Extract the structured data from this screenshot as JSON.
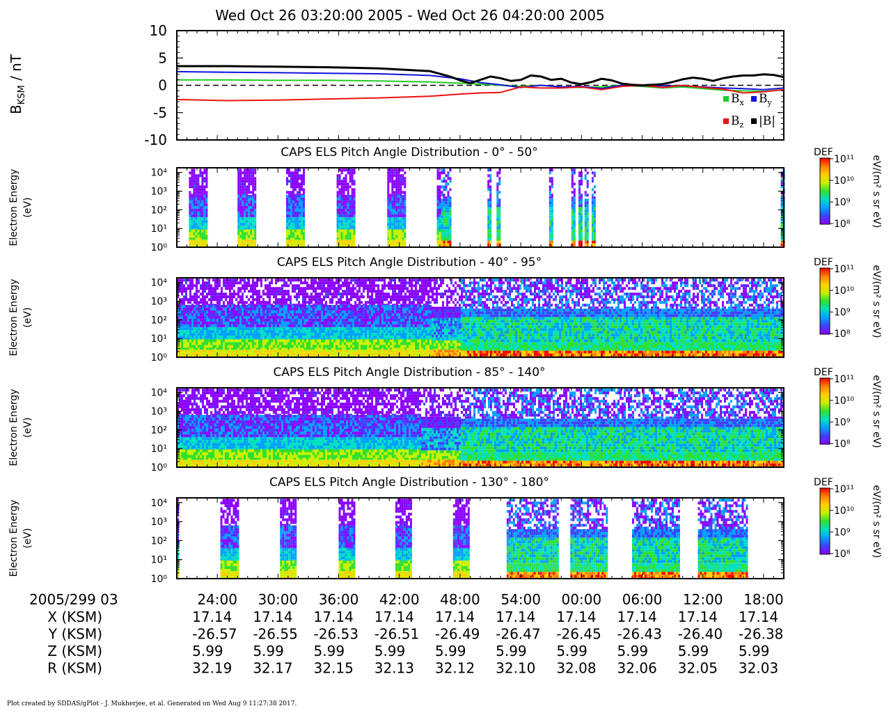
{
  "header": {
    "title": "Wed Oct 26 03:20:00 2005 - Wed Oct 26 04:20:00 2005"
  },
  "colors": {
    "bx": "#22cc22",
    "by": "#1111dd",
    "bz": "#ee1111",
    "bmag": "#000000",
    "colormap": [
      "#8a00ff",
      "#4040ff",
      "#00a0ff",
      "#00e0c0",
      "#30e030",
      "#c8f000",
      "#ffd000",
      "#ff8000",
      "#ff0000"
    ]
  },
  "chart_data": [
    {
      "type": "line",
      "title": "Wed Oct 26 03:20:00 2005 - Wed Oct 26 04:20:00 2005",
      "ylabel": "B",
      "ylabel_sub": "KSM",
      "ylabel_unit": " / nT",
      "ylim": [
        -10,
        10
      ],
      "yticks": [
        "10",
        "5",
        "0",
        "-5",
        "-10"
      ],
      "xlim_minutes": [
        0,
        60
      ],
      "zero_line": "dashed",
      "legend_position": "bottom-right",
      "series": [
        {
          "name": "x",
          "x": [
            0,
            5,
            10,
            15,
            20,
            25,
            28,
            30,
            32,
            34,
            36,
            38,
            40,
            42,
            44,
            46,
            48,
            50,
            52,
            54,
            56,
            58,
            60
          ],
          "values": [
            1.0,
            1.0,
            0.9,
            0.9,
            0.8,
            0.6,
            0.4,
            0.2,
            0.0,
            -0.2,
            0.0,
            -0.3,
            -0.4,
            -0.3,
            0.0,
            -0.2,
            -0.5,
            -0.3,
            -0.6,
            -0.9,
            -1.0,
            -1.1,
            -0.8
          ]
        },
        {
          "name": "y",
          "x": [
            0,
            5,
            10,
            15,
            20,
            25,
            28,
            30,
            32,
            34,
            36,
            38,
            40,
            42,
            44,
            46,
            48,
            50,
            52,
            54,
            56,
            58,
            60
          ],
          "values": [
            2.5,
            2.4,
            2.3,
            2.2,
            2.1,
            1.8,
            1.2,
            0.5,
            0.1,
            -0.4,
            0.0,
            -0.3,
            -0.2,
            -0.6,
            0.0,
            -0.1,
            -0.1,
            -0.1,
            -0.3,
            -0.5,
            -0.6,
            -0.8,
            -0.5
          ]
        },
        {
          "name": "z",
          "x": [
            0,
            5,
            10,
            15,
            20,
            25,
            28,
            30,
            32,
            34,
            36,
            38,
            40,
            42,
            44,
            46,
            48,
            50,
            52,
            54,
            56,
            58,
            60
          ],
          "values": [
            -2.6,
            -2.8,
            -2.7,
            -2.5,
            -2.3,
            -2.0,
            -1.6,
            -1.4,
            -1.3,
            -0.3,
            -0.5,
            -0.5,
            -0.3,
            -0.8,
            -0.2,
            0.0,
            -0.4,
            0.0,
            -0.4,
            -0.7,
            -1.4,
            -1.2,
            -0.8
          ]
        },
        {
          "name": "|B|",
          "x": [
            0,
            5,
            10,
            15,
            20,
            25,
            27,
            28,
            29,
            30,
            31,
            32,
            33,
            34,
            35,
            36,
            37,
            38,
            39,
            40,
            41,
            42,
            43,
            44,
            45,
            46,
            47,
            48,
            49,
            50,
            51,
            52,
            53,
            54,
            55,
            56,
            57,
            58,
            59,
            60
          ],
          "values": [
            3.5,
            3.5,
            3.4,
            3.3,
            3.1,
            2.6,
            1.6,
            0.9,
            0.4,
            1.0,
            1.6,
            1.3,
            0.8,
            1.0,
            1.8,
            1.6,
            1.0,
            1.2,
            0.5,
            0.2,
            0.6,
            1.2,
            0.9,
            0.3,
            0.1,
            0.0,
            0.1,
            0.2,
            0.6,
            1.1,
            1.4,
            1.2,
            0.8,
            1.3,
            1.6,
            1.8,
            1.8,
            2.0,
            1.9,
            1.5
          ]
        }
      ],
      "legend": [
        {
          "sym": "B",
          "sub": "x",
          "color": "#22cc22"
        },
        {
          "sym": "B",
          "sub": "y",
          "color": "#1111dd"
        },
        {
          "sym": "B",
          "sub": "z",
          "color": "#ee1111"
        },
        {
          "sym": "|B|",
          "sub": "",
          "color": "#000000"
        }
      ]
    },
    {
      "type": "heatmap",
      "title": "CAPS ELS Pitch Angle Distribution - 0° - 50°",
      "ylabel": [
        "Electron Energy",
        "(eV)"
      ],
      "yticks": [
        "10⁴",
        "10³",
        "10²",
        "10¹",
        "10⁰"
      ],
      "colorbar": {
        "label": "DEF",
        "unit": "eV/(m² s sr eV)",
        "ticks": [
          "10¹¹",
          "10¹⁰",
          "10⁹",
          "10⁸"
        ]
      },
      "coverage": "bursts",
      "bursts_minutes": [
        [
          1.2,
          3.0
        ],
        [
          6.0,
          7.8
        ],
        [
          10.8,
          12.6
        ],
        [
          15.8,
          17.6
        ],
        [
          20.8,
          22.6
        ],
        [
          25.7,
          27.0
        ],
        [
          30.7,
          31.1
        ],
        [
          31.6,
          32.0
        ],
        [
          36.8,
          37.1
        ],
        [
          39.0,
          39.4
        ],
        [
          39.7,
          40.0
        ],
        [
          40.3,
          40.6
        ],
        [
          41.0,
          41.3
        ],
        [
          59.7,
          60.0
        ]
      ],
      "character": [
        {
          "from": 0,
          "to": 26,
          "shape": "low"
        },
        {
          "from": 26,
          "to": 60,
          "shape": "warm"
        }
      ]
    },
    {
      "type": "heatmap",
      "title": "CAPS ELS Pitch Angle Distribution - 40° - 95°",
      "ylabel": [
        "Electron Energy",
        "(eV)"
      ],
      "yticks": [
        "10⁴",
        "10³",
        "10²",
        "10¹",
        "10⁰"
      ],
      "colorbar": {
        "label": "DEF",
        "unit": "eV/(m² s sr eV)",
        "ticks": [
          "10¹¹",
          "10¹⁰",
          "10⁹",
          "10⁸"
        ]
      },
      "coverage": "continuous",
      "character": [
        {
          "from": 0,
          "to": 25,
          "shape": "low"
        },
        {
          "from": 25,
          "to": 28,
          "shape": "mix"
        },
        {
          "from": 28,
          "to": 60,
          "shape": "warm"
        }
      ]
    },
    {
      "type": "heatmap",
      "title": "CAPS ELS Pitch Angle Distribution - 85° - 140°",
      "ylabel": [
        "Electron Energy",
        "(eV)"
      ],
      "yticks": [
        "10⁴",
        "10³",
        "10²",
        "10¹",
        "10⁰"
      ],
      "colorbar": {
        "label": "DEF",
        "unit": "eV/(m² s sr eV)",
        "ticks": [
          "10¹¹",
          "10¹⁰",
          "10⁹",
          "10⁸"
        ]
      },
      "coverage": "continuous",
      "character": [
        {
          "from": 0,
          "to": 24,
          "shape": "low"
        },
        {
          "from": 24,
          "to": 28,
          "shape": "mix"
        },
        {
          "from": 28,
          "to": 60,
          "shape": "warm"
        }
      ]
    },
    {
      "type": "heatmap",
      "title": "CAPS ELS Pitch Angle Distribution - 130° - 180°",
      "ylabel": [
        "Electron Energy",
        "(eV)"
      ],
      "yticks": [
        "10⁴",
        "10³",
        "10²",
        "10¹",
        "10⁰"
      ],
      "colorbar": {
        "label": "DEF",
        "unit": "eV/(m² s sr eV)",
        "ticks": [
          "10¹¹",
          "10¹⁰",
          "10⁹",
          "10⁸"
        ]
      },
      "coverage": "bursts",
      "bursts_minutes": [
        [
          0.0,
          0.2
        ],
        [
          4.3,
          6.0
        ],
        [
          10.2,
          11.8
        ],
        [
          16.0,
          17.6
        ],
        [
          21.6,
          23.2
        ],
        [
          27.3,
          28.8
        ],
        [
          32.6,
          37.6
        ],
        [
          38.9,
          42.6
        ],
        [
          45.0,
          49.6
        ],
        [
          51.5,
          56.4
        ]
      ],
      "character": [
        {
          "from": 0,
          "to": 31,
          "shape": "low"
        },
        {
          "from": 31,
          "to": 60,
          "shape": "warm"
        }
      ]
    }
  ],
  "ephemeris": {
    "time_header": "2005/299 03",
    "rows": [
      {
        "label": "X (KSM)",
        "values": [
          "17.14",
          "17.14",
          "17.14",
          "17.14",
          "17.14",
          "17.14",
          "17.14",
          "17.14",
          "17.14",
          "17.14"
        ]
      },
      {
        "label": "Y (KSM)",
        "values": [
          "-26.57",
          "-26.55",
          "-26.53",
          "-26.51",
          "-26.49",
          "-26.47",
          "-26.45",
          "-26.43",
          "-26.40",
          "-26.38"
        ]
      },
      {
        "label": "Z (KSM)",
        "values": [
          "5.99",
          "5.99",
          "5.99",
          "5.99",
          "5.99",
          "5.99",
          "5.99",
          "5.99",
          "5.99",
          "5.99"
        ]
      },
      {
        "label": "R (KSM)",
        "values": [
          "32.19",
          "32.17",
          "32.15",
          "32.13",
          "32.12",
          "32.10",
          "32.08",
          "32.06",
          "32.05",
          "32.03"
        ]
      }
    ],
    "time_labels": [
      "24:00",
      "30:00",
      "36:00",
      "42:00",
      "48:00",
      "54:00",
      "00:00",
      "06:00",
      "12:00",
      "18:00"
    ],
    "time_minutes": [
      4,
      10,
      16,
      22,
      28,
      34,
      40,
      46,
      52,
      58
    ]
  },
  "footer": "Plot created by SDDAS/gPlot - J. Mukherjee, et al.  Generated on Wed Aug 9 11:27:38 2017."
}
